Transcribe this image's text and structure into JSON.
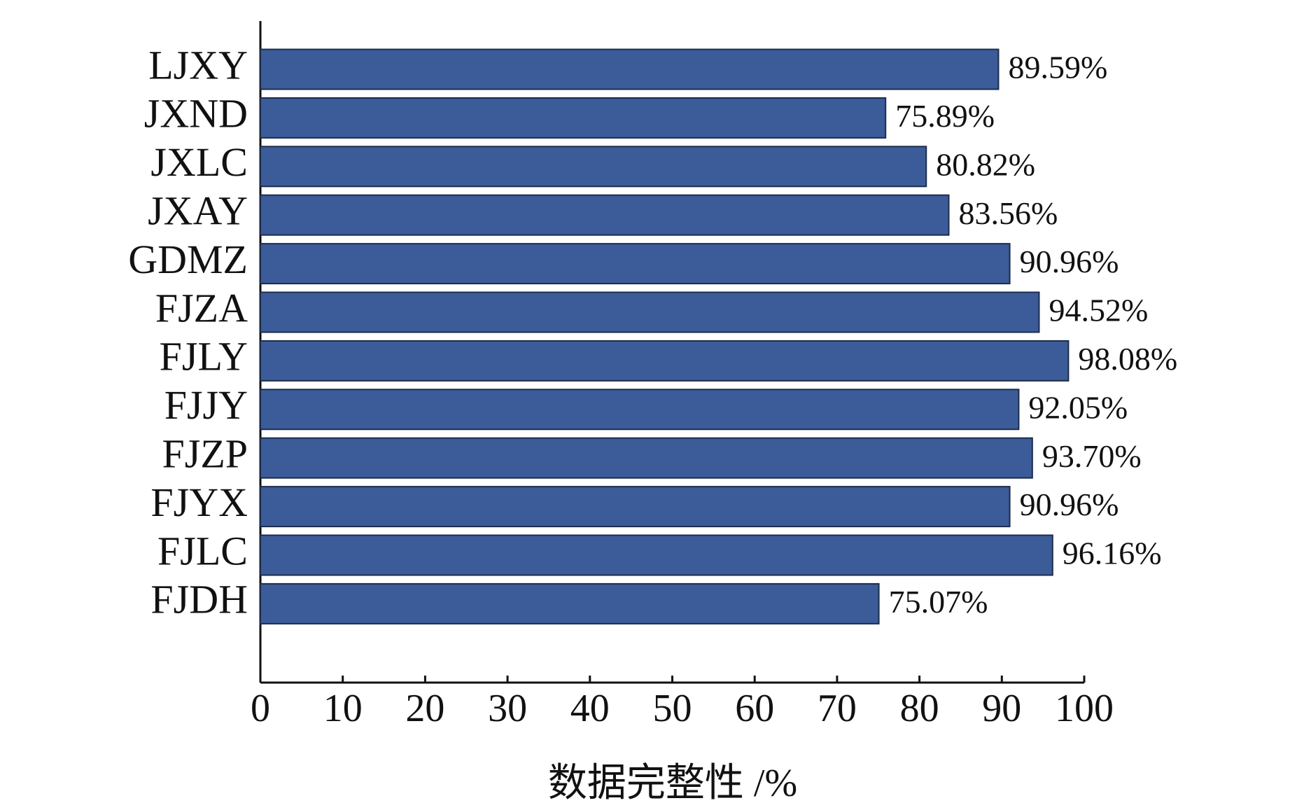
{
  "chart_data": {
    "type": "hbar",
    "categories": [
      "LJXY",
      "JXND",
      "JXLC",
      "JXAY",
      "GDMZ",
      "FJZA",
      "FJLY",
      "FJJY",
      "FJZP",
      "FJYX",
      "FJLC",
      "FJDH"
    ],
    "values": [
      89.59,
      75.89,
      80.82,
      83.56,
      90.96,
      94.52,
      98.08,
      92.05,
      93.7,
      90.96,
      96.16,
      75.07
    ],
    "value_labels": [
      "89.59%",
      "75.89%",
      "80.82%",
      "83.56%",
      "90.96%",
      "94.52%",
      "98.08%",
      "92.05%",
      "93.70%",
      "90.96%",
      "96.16%",
      "75.07%"
    ],
    "color": "#3b5c99",
    "x_label": "数据完整性 /%",
    "xlim": [
      0,
      100
    ],
    "xticks": [
      0,
      10,
      20,
      30,
      40,
      50,
      60,
      70,
      80,
      90,
      100
    ]
  }
}
